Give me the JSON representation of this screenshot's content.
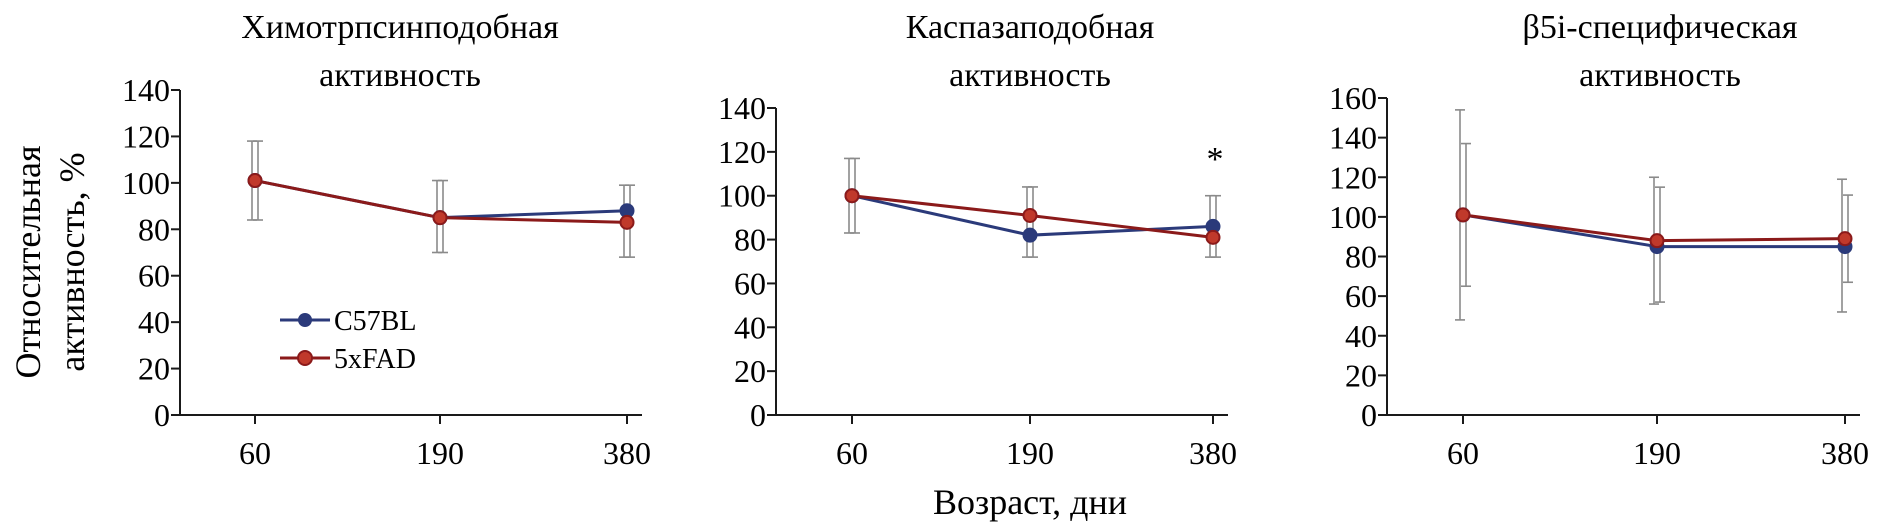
{
  "figure": {
    "ylabel_line1": "Относительная",
    "ylabel_line2": "активность, %",
    "xlabel": "Возраст, дни"
  },
  "legend": {
    "placement": "inside lower-left of first panel",
    "items": [
      {
        "label": "C57BL",
        "color": "#2b3a7a"
      },
      {
        "label": "5xFAD",
        "color": "#8b1a1a"
      }
    ]
  },
  "colors": {
    "c57bl": "#2b3a7a",
    "fxad": "#8b1a1a",
    "axis": "#1a1a1a",
    "errorbar": "#8a8a8a"
  },
  "chart_data": [
    {
      "type": "line",
      "title_line1": "Химотрпсинподобная",
      "title_line2": "активность",
      "categories": [
        "60",
        "190",
        "380"
      ],
      "ylim": [
        0,
        140
      ],
      "yticks": [
        0,
        20,
        40,
        60,
        80,
        100,
        120,
        140
      ],
      "grid": false,
      "annotation": "",
      "series": [
        {
          "name": "C57BL",
          "values": [
            101,
            85,
            88
          ],
          "err_low": [
            84,
            70,
            68
          ],
          "err_high": [
            118,
            101,
            99
          ]
        },
        {
          "name": "5xFAD",
          "values": [
            101,
            85,
            83
          ],
          "err_low": [
            84,
            70,
            68
          ],
          "err_high": [
            118,
            101,
            99
          ]
        }
      ]
    },
    {
      "type": "line",
      "title_line1": "Каспазаподобная",
      "title_line2": "активность",
      "categories": [
        "60",
        "190",
        "380"
      ],
      "ylim": [
        0,
        140
      ],
      "yticks": [
        0,
        20,
        40,
        60,
        80,
        100,
        120,
        140
      ],
      "grid": false,
      "annotation": "*",
      "series": [
        {
          "name": "C57BL",
          "values": [
            100,
            82,
            86
          ],
          "err_low": [
            83,
            72,
            72
          ],
          "err_high": [
            117,
            104,
            100
          ]
        },
        {
          "name": "5xFAD",
          "values": [
            100,
            91,
            81
          ],
          "err_low": [
            83,
            72,
            72
          ],
          "err_high": [
            117,
            104,
            100
          ]
        }
      ]
    },
    {
      "type": "line",
      "title_line1": "β5i-специфическая",
      "title_line2": "активность",
      "categories": [
        "60",
        "190",
        "380"
      ],
      "ylim": [
        0,
        160
      ],
      "yticks": [
        0,
        20,
        40,
        60,
        80,
        100,
        120,
        140,
        160
      ],
      "grid": false,
      "annotation": "",
      "series": [
        {
          "name": "C57BL",
          "values": [
            101,
            85,
            85
          ],
          "err_low": [
            48,
            56,
            52
          ],
          "err_high": [
            154,
            120,
            119
          ]
        },
        {
          "name": "5xFAD",
          "values": [
            101,
            88,
            89
          ],
          "err_low": [
            65,
            57,
            67
          ],
          "err_high": [
            137,
            115,
            111
          ]
        }
      ]
    }
  ]
}
